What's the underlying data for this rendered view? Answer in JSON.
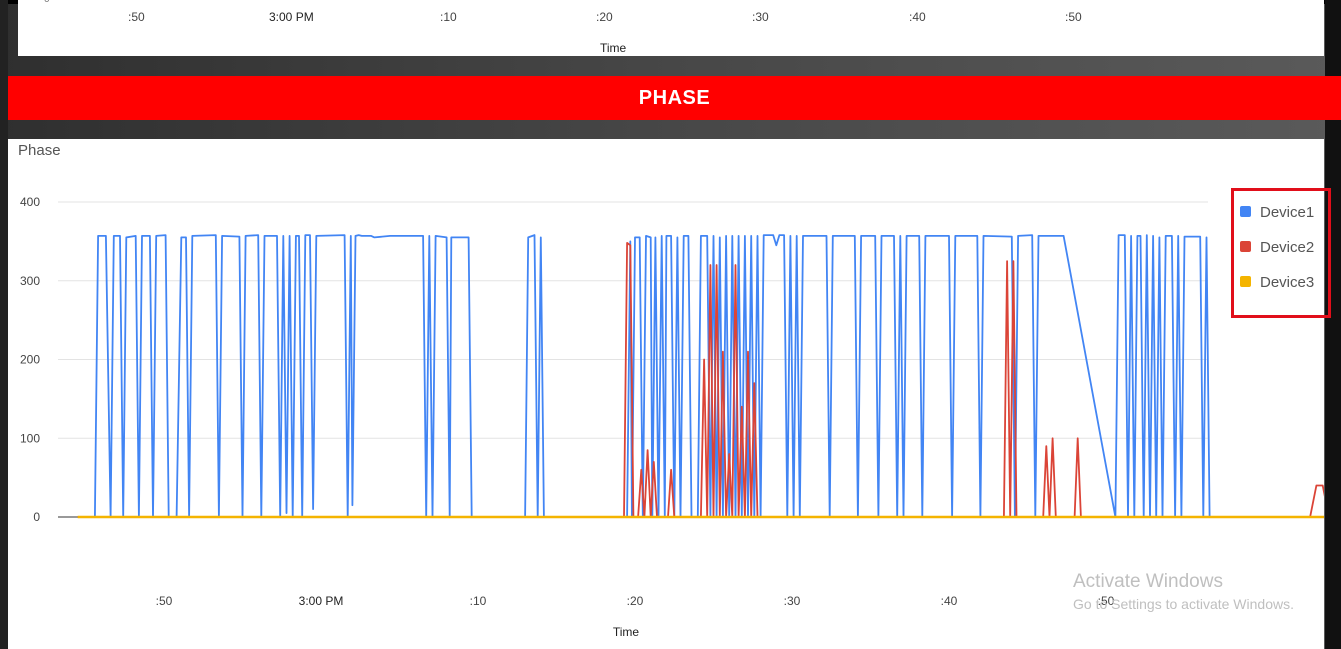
{
  "top_chart": {
    "x_ticks": [
      ":50",
      "3:00 PM",
      ":10",
      ":20",
      ":30",
      ":40",
      ":50"
    ],
    "x_title": "Time",
    "y_fragment": "0"
  },
  "banner": {
    "label": "PHASE",
    "color": "#ff0000"
  },
  "chart_data": {
    "type": "line",
    "title": "Phase",
    "xlabel": "Time",
    "ylabel": "",
    "ylim": [
      0,
      400
    ],
    "y_ticks": [
      "0",
      "100",
      "200",
      "300",
      "400"
    ],
    "x_ticks": [
      ":50",
      "3:00 PM",
      ":10",
      ":20",
      ":30",
      ":40",
      ":50"
    ],
    "x_tick_minutes": [
      -10,
      0,
      10,
      20,
      30,
      40,
      50
    ],
    "grid": true,
    "legend_position": "right",
    "series": [
      {
        "name": "Device1",
        "color": "#4285f4",
        "points": [
          [
            -15.5,
            0
          ],
          [
            -14.4,
            0
          ],
          [
            -14.2,
            357
          ],
          [
            -13.7,
            357
          ],
          [
            -13.4,
            0
          ],
          [
            -13.2,
            357
          ],
          [
            -12.8,
            357
          ],
          [
            -12.6,
            0
          ],
          [
            -12.4,
            355
          ],
          [
            -11.8,
            357
          ],
          [
            -11.6,
            0
          ],
          [
            -11.4,
            357
          ],
          [
            -10.9,
            357
          ],
          [
            -10.7,
            0
          ],
          [
            -10.5,
            357
          ],
          [
            -9.9,
            358
          ],
          [
            -9.7,
            0
          ],
          [
            -9.2,
            0
          ],
          [
            -8.9,
            355
          ],
          [
            -8.6,
            355
          ],
          [
            -8.4,
            0
          ],
          [
            -8.2,
            357
          ],
          [
            -6.7,
            358
          ],
          [
            -6.5,
            0
          ],
          [
            -6.3,
            357
          ],
          [
            -5.2,
            356
          ],
          [
            -5.0,
            0
          ],
          [
            -4.8,
            357
          ],
          [
            -4.0,
            358
          ],
          [
            -3.8,
            0
          ],
          [
            -3.6,
            357
          ],
          [
            -2.8,
            357
          ],
          [
            -2.6,
            0
          ],
          [
            -2.4,
            357
          ],
          [
            -2.2,
            5
          ],
          [
            -2.0,
            357
          ],
          [
            -1.8,
            0
          ],
          [
            -1.6,
            357
          ],
          [
            -1.4,
            357
          ],
          [
            -1.2,
            0
          ],
          [
            -1.0,
            358
          ],
          [
            -0.7,
            358
          ],
          [
            -0.5,
            10
          ],
          [
            -0.3,
            357
          ],
          [
            1.5,
            358
          ],
          [
            1.7,
            0
          ],
          [
            1.9,
            357
          ],
          [
            2.0,
            15
          ],
          [
            2.2,
            357
          ],
          [
            2.4,
            358
          ],
          [
            2.6,
            357
          ],
          [
            3.2,
            357
          ],
          [
            3.4,
            355
          ],
          [
            4.4,
            357
          ],
          [
            6.5,
            357
          ],
          [
            6.7,
            0
          ],
          [
            6.9,
            357
          ],
          [
            7.1,
            0
          ],
          [
            7.3,
            357
          ],
          [
            8.0,
            355
          ],
          [
            8.2,
            0
          ],
          [
            8.3,
            355
          ],
          [
            9.4,
            355
          ],
          [
            9.6,
            0
          ],
          [
            10.0,
            0
          ],
          [
            13.0,
            0
          ],
          [
            13.2,
            355
          ],
          [
            13.6,
            358
          ],
          [
            13.8,
            0
          ],
          [
            14.0,
            355
          ],
          [
            14.2,
            0
          ],
          [
            19.5,
            0
          ],
          [
            19.7,
            350
          ],
          [
            19.8,
            0
          ],
          [
            20.0,
            355
          ],
          [
            20.3,
            355
          ],
          [
            20.5,
            0
          ],
          [
            20.7,
            357
          ],
          [
            21.0,
            355
          ],
          [
            21.1,
            0
          ],
          [
            21.3,
            355
          ],
          [
            21.5,
            0
          ],
          [
            21.7,
            357
          ],
          [
            21.9,
            0
          ],
          [
            22.0,
            357
          ],
          [
            22.3,
            357
          ],
          [
            22.5,
            0
          ],
          [
            22.7,
            355
          ],
          [
            22.9,
            0
          ],
          [
            23.1,
            357
          ],
          [
            23.4,
            357
          ],
          [
            23.6,
            0
          ],
          [
            24.0,
            0
          ],
          [
            24.2,
            357
          ],
          [
            24.6,
            357
          ],
          [
            24.8,
            0
          ],
          [
            25.0,
            357
          ],
          [
            25.2,
            0
          ],
          [
            25.4,
            355
          ],
          [
            25.6,
            0
          ],
          [
            25.8,
            357
          ],
          [
            26.0,
            0
          ],
          [
            26.2,
            357
          ],
          [
            26.4,
            0
          ],
          [
            26.6,
            357
          ],
          [
            26.8,
            0
          ],
          [
            27.0,
            357
          ],
          [
            27.2,
            0
          ],
          [
            27.4,
            357
          ],
          [
            27.6,
            0
          ],
          [
            27.8,
            357
          ],
          [
            28.0,
            0
          ],
          [
            28.2,
            358
          ],
          [
            28.8,
            358
          ],
          [
            29.0,
            345
          ],
          [
            29.2,
            358
          ],
          [
            29.5,
            358
          ],
          [
            29.7,
            0
          ],
          [
            29.9,
            357
          ],
          [
            30.1,
            0
          ],
          [
            30.3,
            357
          ],
          [
            30.5,
            0
          ],
          [
            30.7,
            357
          ],
          [
            32.2,
            357
          ],
          [
            32.4,
            0
          ],
          [
            32.6,
            357
          ],
          [
            34.0,
            357
          ],
          [
            34.2,
            0
          ],
          [
            34.4,
            357
          ],
          [
            35.3,
            357
          ],
          [
            35.5,
            0
          ],
          [
            35.7,
            357
          ],
          [
            36.5,
            357
          ],
          [
            36.7,
            0
          ],
          [
            36.9,
            357
          ],
          [
            37.1,
            0
          ],
          [
            37.3,
            357
          ],
          [
            38.1,
            357
          ],
          [
            38.3,
            0
          ],
          [
            38.5,
            357
          ],
          [
            40.0,
            357
          ],
          [
            40.2,
            0
          ],
          [
            40.4,
            357
          ],
          [
            41.8,
            357
          ],
          [
            42.0,
            0
          ],
          [
            42.2,
            357
          ],
          [
            44.0,
            356
          ],
          [
            44.2,
            0
          ],
          [
            44.4,
            357
          ],
          [
            45.3,
            358
          ],
          [
            45.5,
            0
          ],
          [
            45.7,
            357
          ],
          [
            47.3,
            357
          ],
          [
            50.6,
            0
          ],
          [
            50.8,
            358
          ],
          [
            51.2,
            358
          ],
          [
            51.4,
            0
          ],
          [
            51.6,
            357
          ],
          [
            51.8,
            0
          ],
          [
            52.0,
            357
          ],
          [
            52.2,
            357
          ],
          [
            52.4,
            0
          ],
          [
            52.6,
            358
          ],
          [
            52.8,
            0
          ],
          [
            53.0,
            357
          ],
          [
            53.2,
            0
          ],
          [
            53.4,
            355
          ],
          [
            53.6,
            0
          ],
          [
            53.8,
            357
          ],
          [
            54.2,
            357
          ],
          [
            54.4,
            0
          ],
          [
            54.6,
            357
          ],
          [
            54.8,
            0
          ],
          [
            55.0,
            356
          ],
          [
            56.0,
            356
          ],
          [
            56.2,
            0
          ],
          [
            56.4,
            355
          ],
          [
            56.6,
            0
          ],
          [
            60.0,
            0
          ],
          [
            64.2,
            0
          ],
          [
            64.4,
            355
          ],
          [
            64.6,
            0
          ],
          [
            64.8,
            355
          ],
          [
            65.0,
            0
          ],
          [
            65.2,
            355
          ],
          [
            65.4,
            0
          ],
          [
            65.6,
            355
          ],
          [
            65.8,
            0
          ],
          [
            66.0,
            355
          ],
          [
            66.2,
            0
          ],
          [
            66.4,
            355
          ],
          [
            66.6,
            0
          ],
          [
            66.8,
            355
          ],
          [
            67.0,
            0
          ],
          [
            67.2,
            355
          ],
          [
            67.4,
            0
          ],
          [
            67.6,
            357
          ],
          [
            67.8,
            0
          ],
          [
            68.0,
            355
          ],
          [
            68.2,
            0
          ],
          [
            68.6,
            357
          ],
          [
            68.8,
            0
          ],
          [
            69.0,
            0
          ],
          [
            72.0,
            0
          ],
          [
            72.4,
            0
          ],
          [
            72.6,
            355
          ],
          [
            72.8,
            0
          ],
          [
            73.0,
            0
          ]
        ]
      },
      {
        "name": "Device2",
        "color": "#db4437",
        "points": [
          [
            -15.5,
            0
          ],
          [
            19.3,
            0
          ],
          [
            19.5,
            348
          ],
          [
            19.7,
            345
          ],
          [
            19.9,
            0
          ],
          [
            20.2,
            0
          ],
          [
            20.4,
            60
          ],
          [
            20.6,
            0
          ],
          [
            20.8,
            85
          ],
          [
            21.0,
            0
          ],
          [
            21.2,
            70
          ],
          [
            21.4,
            0
          ],
          [
            22.1,
            0
          ],
          [
            22.3,
            60
          ],
          [
            22.5,
            0
          ],
          [
            24.2,
            0
          ],
          [
            24.4,
            200
          ],
          [
            24.6,
            0
          ],
          [
            24.8,
            320
          ],
          [
            25.0,
            0
          ],
          [
            25.2,
            320
          ],
          [
            25.4,
            0
          ],
          [
            25.6,
            210
          ],
          [
            25.8,
            0
          ],
          [
            26.0,
            80
          ],
          [
            26.2,
            0
          ],
          [
            26.4,
            320
          ],
          [
            26.6,
            0
          ],
          [
            26.8,
            140
          ],
          [
            27.0,
            0
          ],
          [
            27.2,
            210
          ],
          [
            27.4,
            0
          ],
          [
            27.6,
            170
          ],
          [
            27.8,
            0
          ],
          [
            43.5,
            0
          ],
          [
            43.7,
            325
          ],
          [
            43.9,
            0
          ],
          [
            44.1,
            325
          ],
          [
            44.3,
            0
          ],
          [
            46.0,
            0
          ],
          [
            46.2,
            90
          ],
          [
            46.4,
            0
          ],
          [
            46.6,
            100
          ],
          [
            46.8,
            0
          ],
          [
            48.0,
            0
          ],
          [
            48.2,
            100
          ],
          [
            48.4,
            0
          ],
          [
            63.0,
            0
          ],
          [
            63.4,
            40
          ],
          [
            63.8,
            40
          ],
          [
            64.2,
            0
          ],
          [
            65.4,
            0
          ],
          [
            65.6,
            300
          ],
          [
            65.8,
            0
          ],
          [
            66.0,
            270
          ],
          [
            66.2,
            0
          ],
          [
            66.4,
            175
          ],
          [
            66.6,
            0
          ],
          [
            66.8,
            110
          ],
          [
            67.0,
            0
          ],
          [
            67.2,
            190
          ],
          [
            67.4,
            0
          ],
          [
            67.6,
            210
          ],
          [
            67.8,
            0
          ],
          [
            68.0,
            100
          ],
          [
            68.2,
            0
          ],
          [
            68.4,
            150
          ],
          [
            68.6,
            0
          ],
          [
            68.8,
            355
          ],
          [
            69.0,
            200
          ],
          [
            69.3,
            0
          ],
          [
            71.6,
            0
          ],
          [
            71.8,
            90
          ],
          [
            72.0,
            0
          ],
          [
            72.1,
            220
          ],
          [
            72.3,
            0
          ],
          [
            72.5,
            330
          ],
          [
            72.7,
            0
          ],
          [
            73.0,
            0
          ]
        ]
      },
      {
        "name": "Device3",
        "color": "#f4b400",
        "points": [
          [
            -15.5,
            0
          ],
          [
            73.0,
            0
          ]
        ]
      }
    ]
  },
  "watermark": {
    "line1": "Activate Windows",
    "line2": "Go to Settings to activate Windows."
  }
}
